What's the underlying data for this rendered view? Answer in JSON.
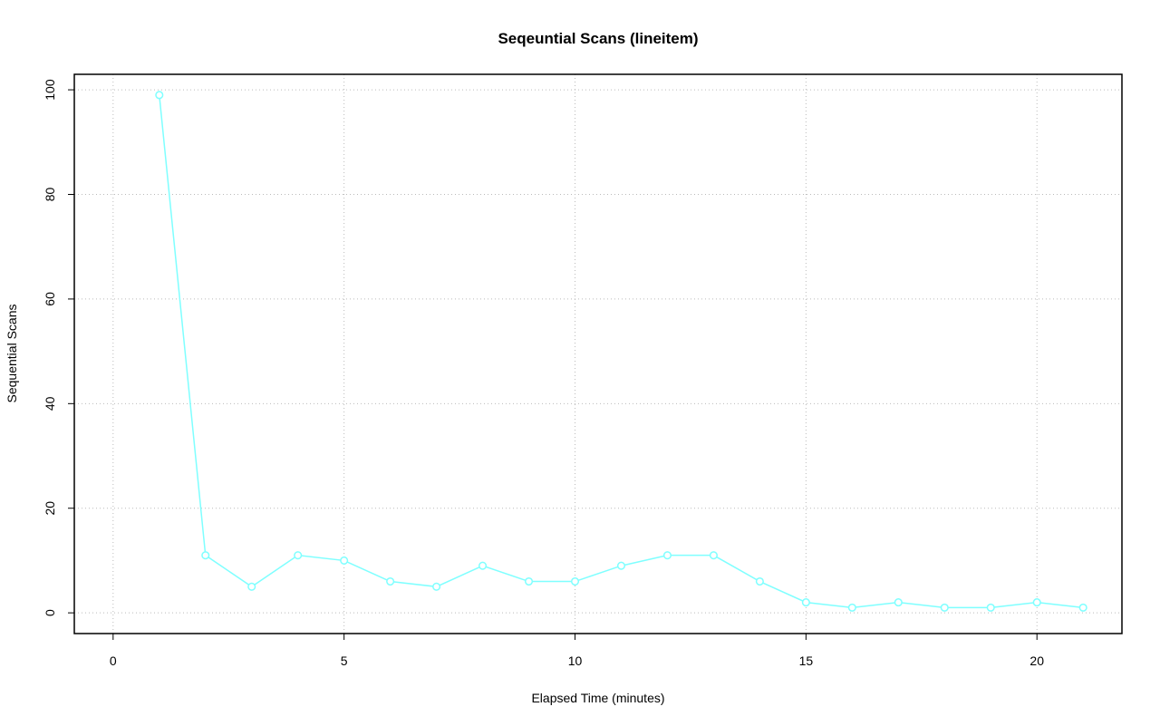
{
  "chart_data": {
    "type": "line",
    "title": "Seqeuntial Scans (lineitem)",
    "x_label": "Elapsed Time (minutes)",
    "y_label": "Sequential Scans",
    "x": [
      1,
      2,
      3,
      4,
      5,
      6,
      7,
      8,
      9,
      10,
      11,
      12,
      13,
      14,
      15,
      16,
      17,
      18,
      19,
      20,
      21
    ],
    "series": [
      {
        "color": "#7fffff",
        "values": [
          99,
          11,
          5,
          11,
          10,
          6,
          5,
          9,
          6,
          6,
          9,
          11,
          11,
          6,
          2,
          1,
          2,
          1,
          1,
          2,
          1
        ]
      }
    ],
    "xlim": [
      -0.84,
      21.84
    ],
    "xticks": [
      0,
      5,
      10,
      15,
      20
    ],
    "ylim": [
      -3.96,
      102.96
    ],
    "yticks": [
      0,
      20,
      40,
      60,
      80,
      100
    ],
    "grid": true
  }
}
